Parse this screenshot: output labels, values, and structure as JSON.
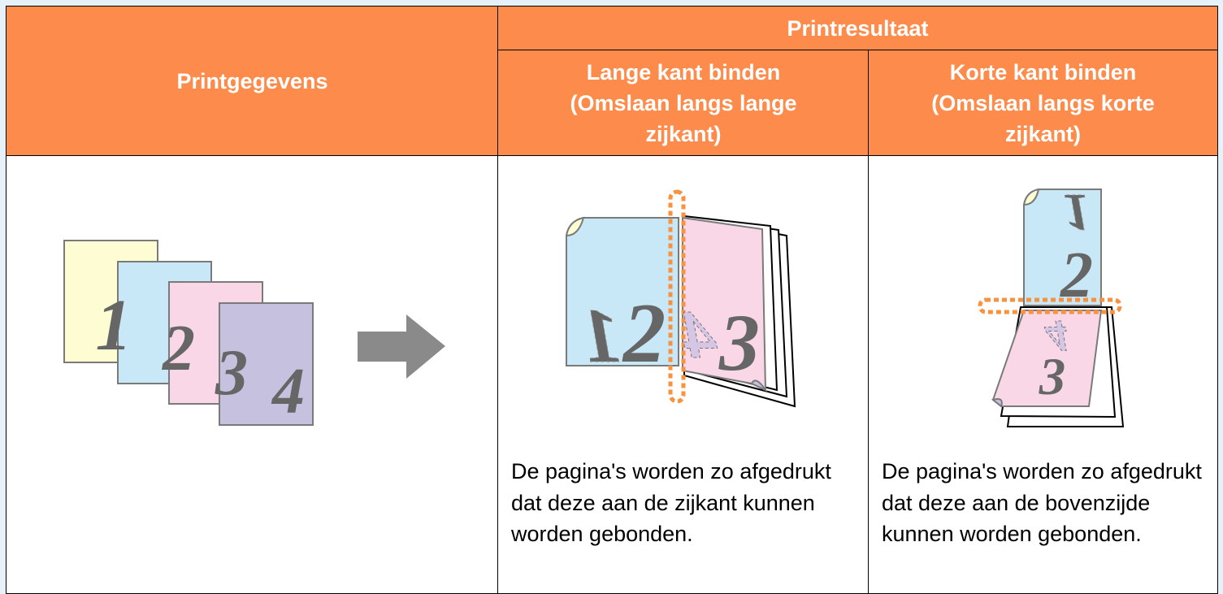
{
  "header": {
    "source": "Printgegevens",
    "result": "Printresultaat",
    "long_edge": "Lange kant binden (Omslaan langs lange zijkant)",
    "short_edge": "Korte kant binden (Omslaan langs korte zijkant)"
  },
  "illustrations": {
    "input_pages": [
      "1",
      "2",
      "3",
      "4"
    ],
    "long_edge_pages": [
      "1",
      "2",
      "4",
      "3"
    ],
    "short_edge_pages": [
      "1",
      "2",
      "4",
      "3"
    ]
  },
  "descriptions": {
    "long_edge": "De pagina's worden zo afgedrukt dat deze aan de zijkant kunnen worden gebonden.",
    "short_edge": "De pagina's worden zo afgedrukt dat deze aan de bovenzijde kunnen worden gebonden."
  }
}
